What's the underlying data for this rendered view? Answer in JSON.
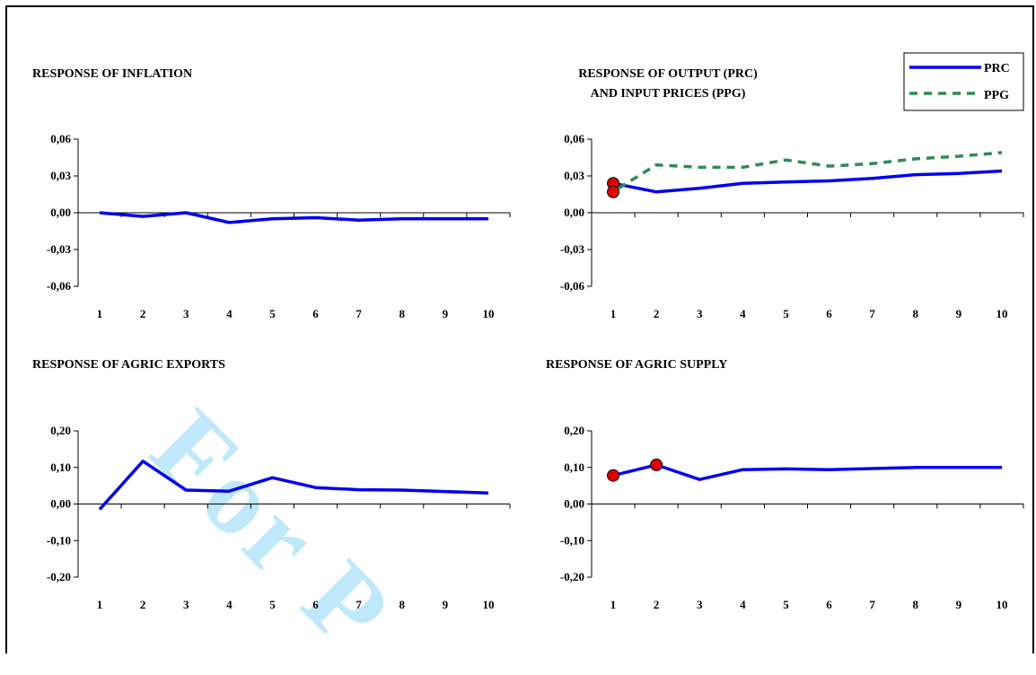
{
  "watermark": "For P",
  "colors": {
    "series_main": "#0000ee",
    "series_ppg": "#2e8b57",
    "marker": "#e00000"
  },
  "legend": {
    "items": [
      {
        "label": "PRC"
      },
      {
        "label": "PPG"
      }
    ]
  },
  "chart_data": [
    {
      "type": "line",
      "title_lines": [
        "RESPONSE OF INFLATION"
      ],
      "categories": [
        "1",
        "2",
        "3",
        "4",
        "5",
        "6",
        "7",
        "8",
        "9",
        "10"
      ],
      "yticks": [
        "0,06",
        "0,03",
        "0,00",
        "-0,03",
        "-0,06"
      ],
      "ylim": [
        -0.06,
        0.06
      ],
      "series": [
        {
          "values": [
            0.0,
            -0.003,
            0.0,
            -0.008,
            -0.005,
            -0.004,
            -0.006,
            -0.005,
            -0.005,
            -0.005
          ],
          "style": "solid",
          "color": "#0000ee"
        }
      ],
      "markers": []
    },
    {
      "type": "line",
      "title_lines": [
        "RESPONSE OF OUTPUT (PRC)",
        "AND INPUT PRICES (PPG)"
      ],
      "categories": [
        "1",
        "2",
        "3",
        "4",
        "5",
        "6",
        "7",
        "8",
        "9",
        "10"
      ],
      "yticks": [
        "0,06",
        "0,03",
        "0,00",
        "-0,03",
        "-0,06"
      ],
      "ylim": [
        -0.06,
        0.06
      ],
      "series": [
        {
          "name": "PRC",
          "values": [
            0.024,
            0.017,
            0.02,
            0.024,
            0.025,
            0.026,
            0.028,
            0.031,
            0.032,
            0.034
          ],
          "style": "solid",
          "color": "#0000ee"
        },
        {
          "name": "PPG",
          "values": [
            0.02,
            0.039,
            0.037,
            0.037,
            0.043,
            0.038,
            0.04,
            0.044,
            0.046,
            0.049
          ],
          "style": "dashed",
          "color": "#2e8b57"
        }
      ],
      "markers": [
        {
          "x": "1",
          "y": 0.024
        },
        {
          "x": "1",
          "y": 0.017
        }
      ]
    },
    {
      "type": "line",
      "title_lines": [
        "RESPONSE OF AGRIC EXPORTS"
      ],
      "categories": [
        "1",
        "2",
        "3",
        "4",
        "5",
        "6",
        "7",
        "8",
        "9",
        "10"
      ],
      "yticks": [
        "0,20",
        "0,10",
        "0,00",
        "-0,10",
        "-0,20"
      ],
      "ylim": [
        -0.2,
        0.2
      ],
      "series": [
        {
          "values": [
            -0.015,
            0.117,
            0.038,
            0.035,
            0.072,
            0.045,
            0.039,
            0.038,
            0.034,
            0.03
          ],
          "style": "solid",
          "color": "#0000ee"
        }
      ],
      "markers": []
    },
    {
      "type": "line",
      "title_lines": [
        "RESPONSE OF AGRIC SUPPLY"
      ],
      "categories": [
        "1",
        "2",
        "3",
        "4",
        "5",
        "6",
        "7",
        "8",
        "9",
        "10"
      ],
      "yticks": [
        "0,20",
        "0,10",
        "0,00",
        "-0,10",
        "-0,20"
      ],
      "ylim": [
        -0.2,
        0.2
      ],
      "series": [
        {
          "values": [
            0.078,
            0.107,
            0.067,
            0.094,
            0.096,
            0.094,
            0.097,
            0.1,
            0.1,
            0.1
          ],
          "style": "solid",
          "color": "#0000ee"
        }
      ],
      "markers": [
        {
          "x": "1",
          "y": 0.078
        },
        {
          "x": "2",
          "y": 0.107
        }
      ]
    }
  ]
}
